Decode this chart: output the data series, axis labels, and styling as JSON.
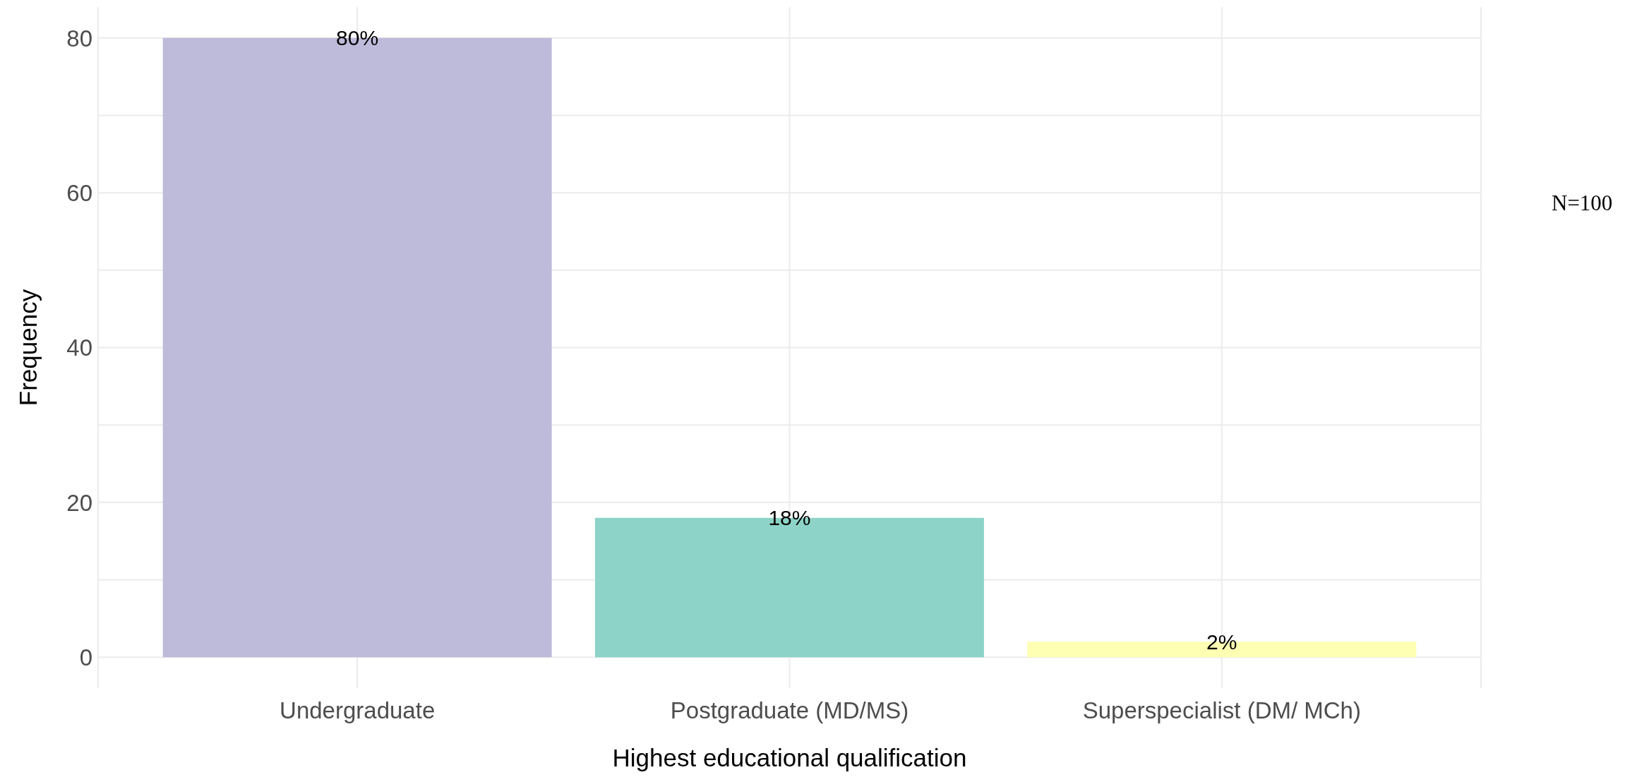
{
  "chart_data": {
    "type": "bar",
    "xlabel": "Highest educational qualification",
    "ylabel": "Frequency",
    "categories": [
      "Undergraduate",
      "Postgraduate (MD/MS)",
      "Superspecialist (DM/ MCh)"
    ],
    "values": [
      80,
      18,
      2
    ],
    "colors": [
      "#bebada",
      "#8dd3c7",
      "#ffffb3"
    ],
    "value_labels": [
      "80%",
      "18%",
      "2%"
    ],
    "ylim": [
      -4,
      84
    ],
    "yticks": [
      0,
      {
        "value": 10,
        "label": null
      },
      20,
      {
        "value": 30,
        "label": null
      },
      40,
      {
        "value": 50,
        "label": null
      },
      60,
      {
        "value": 70,
        "label": null
      },
      80
    ],
    "grid": true,
    "annotations": [
      "N=100"
    ]
  }
}
